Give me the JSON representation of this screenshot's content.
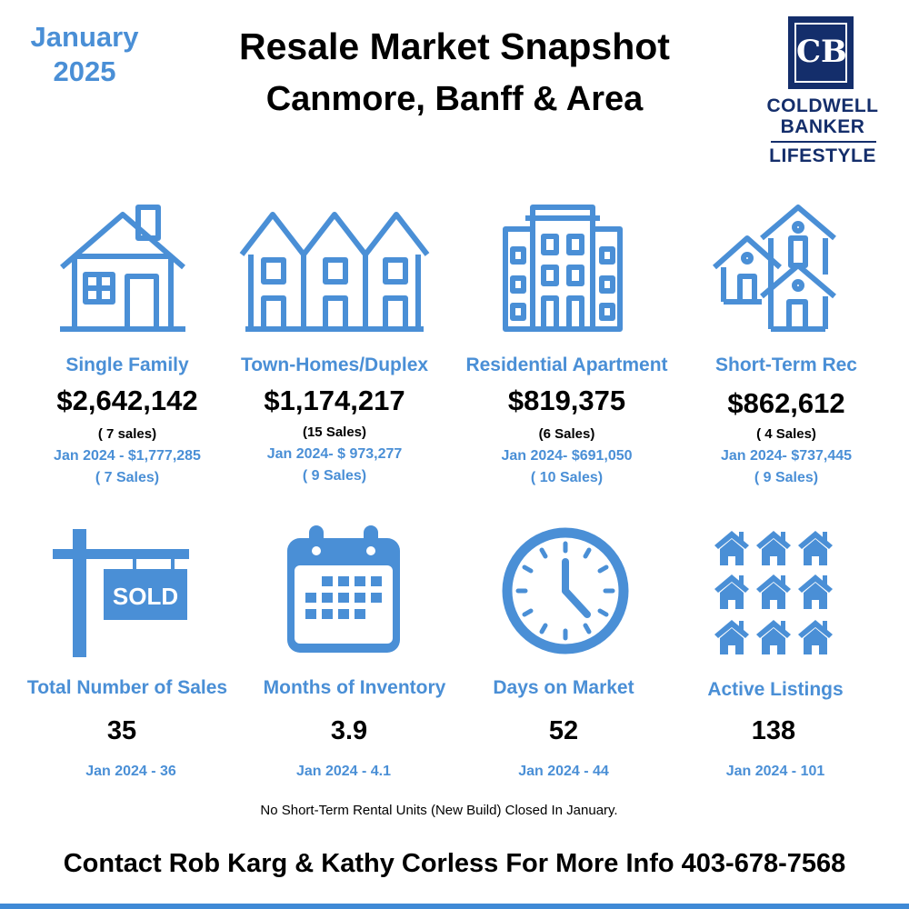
{
  "header": {
    "month": "January",
    "year": "2025",
    "title": "Resale Market Snapshot",
    "subtitle": "Canmore, Banff & Area",
    "logo": {
      "monogram": "CB",
      "line1": "COLDWELL",
      "line2": "BANKER",
      "line3": "LIFESTYLE",
      "color": "#142e6b"
    }
  },
  "categories": [
    {
      "icon": "house-icon",
      "label": "Single Family",
      "price": "$2,642,142",
      "sales": "( 7 sales)",
      "prev_price": "Jan 2024 - $1,777,285",
      "prev_sales": "( 7 Sales)"
    },
    {
      "icon": "townhomes-icon",
      "label": "Town-Homes/Duplex",
      "price": "$1,174,217",
      "sales": "(15 Sales)",
      "prev_price": "Jan 2024- $ 973,277",
      "prev_sales": "( 9 Sales)"
    },
    {
      "icon": "apartment-building-icon",
      "label": "Residential Apartment",
      "price": "$819,375",
      "sales": "(6 Sales)",
      "prev_price": "Jan 2024- $691,050",
      "prev_sales": "( 10 Sales)"
    },
    {
      "icon": "houses-cluster-icon",
      "label": "Short-Term Rec",
      "price": "$862,612",
      "sales": "( 4 Sales)",
      "prev_price": "Jan 2024- $737,445",
      "prev_sales": "( 9 Sales)"
    }
  ],
  "stats": [
    {
      "icon": "sold-sign-icon",
      "icon_text": "SOLD",
      "label": "Total Number of Sales",
      "value": "35",
      "prev": "Jan  2024 - 36"
    },
    {
      "icon": "calendar-icon",
      "label": "Months of Inventory",
      "value": "3.9",
      "prev": "Jan 2024 - 4.1"
    },
    {
      "icon": "clock-icon",
      "label": "Days on Market",
      "value": "52",
      "prev": "Jan 2024 - 44"
    },
    {
      "icon": "home-grid-icon",
      "label": "Active Listings",
      "value": "138",
      "prev": "Jan 2024 - 101"
    }
  ],
  "note": "No Short-Term Rental Units (New Build) Closed In January.",
  "contact": "Contact Rob Karg & Kathy Corless For More Info 403-678-7568",
  "colors": {
    "accent": "#4a8fd6",
    "text": "#000000",
    "brand": "#142e6b"
  }
}
